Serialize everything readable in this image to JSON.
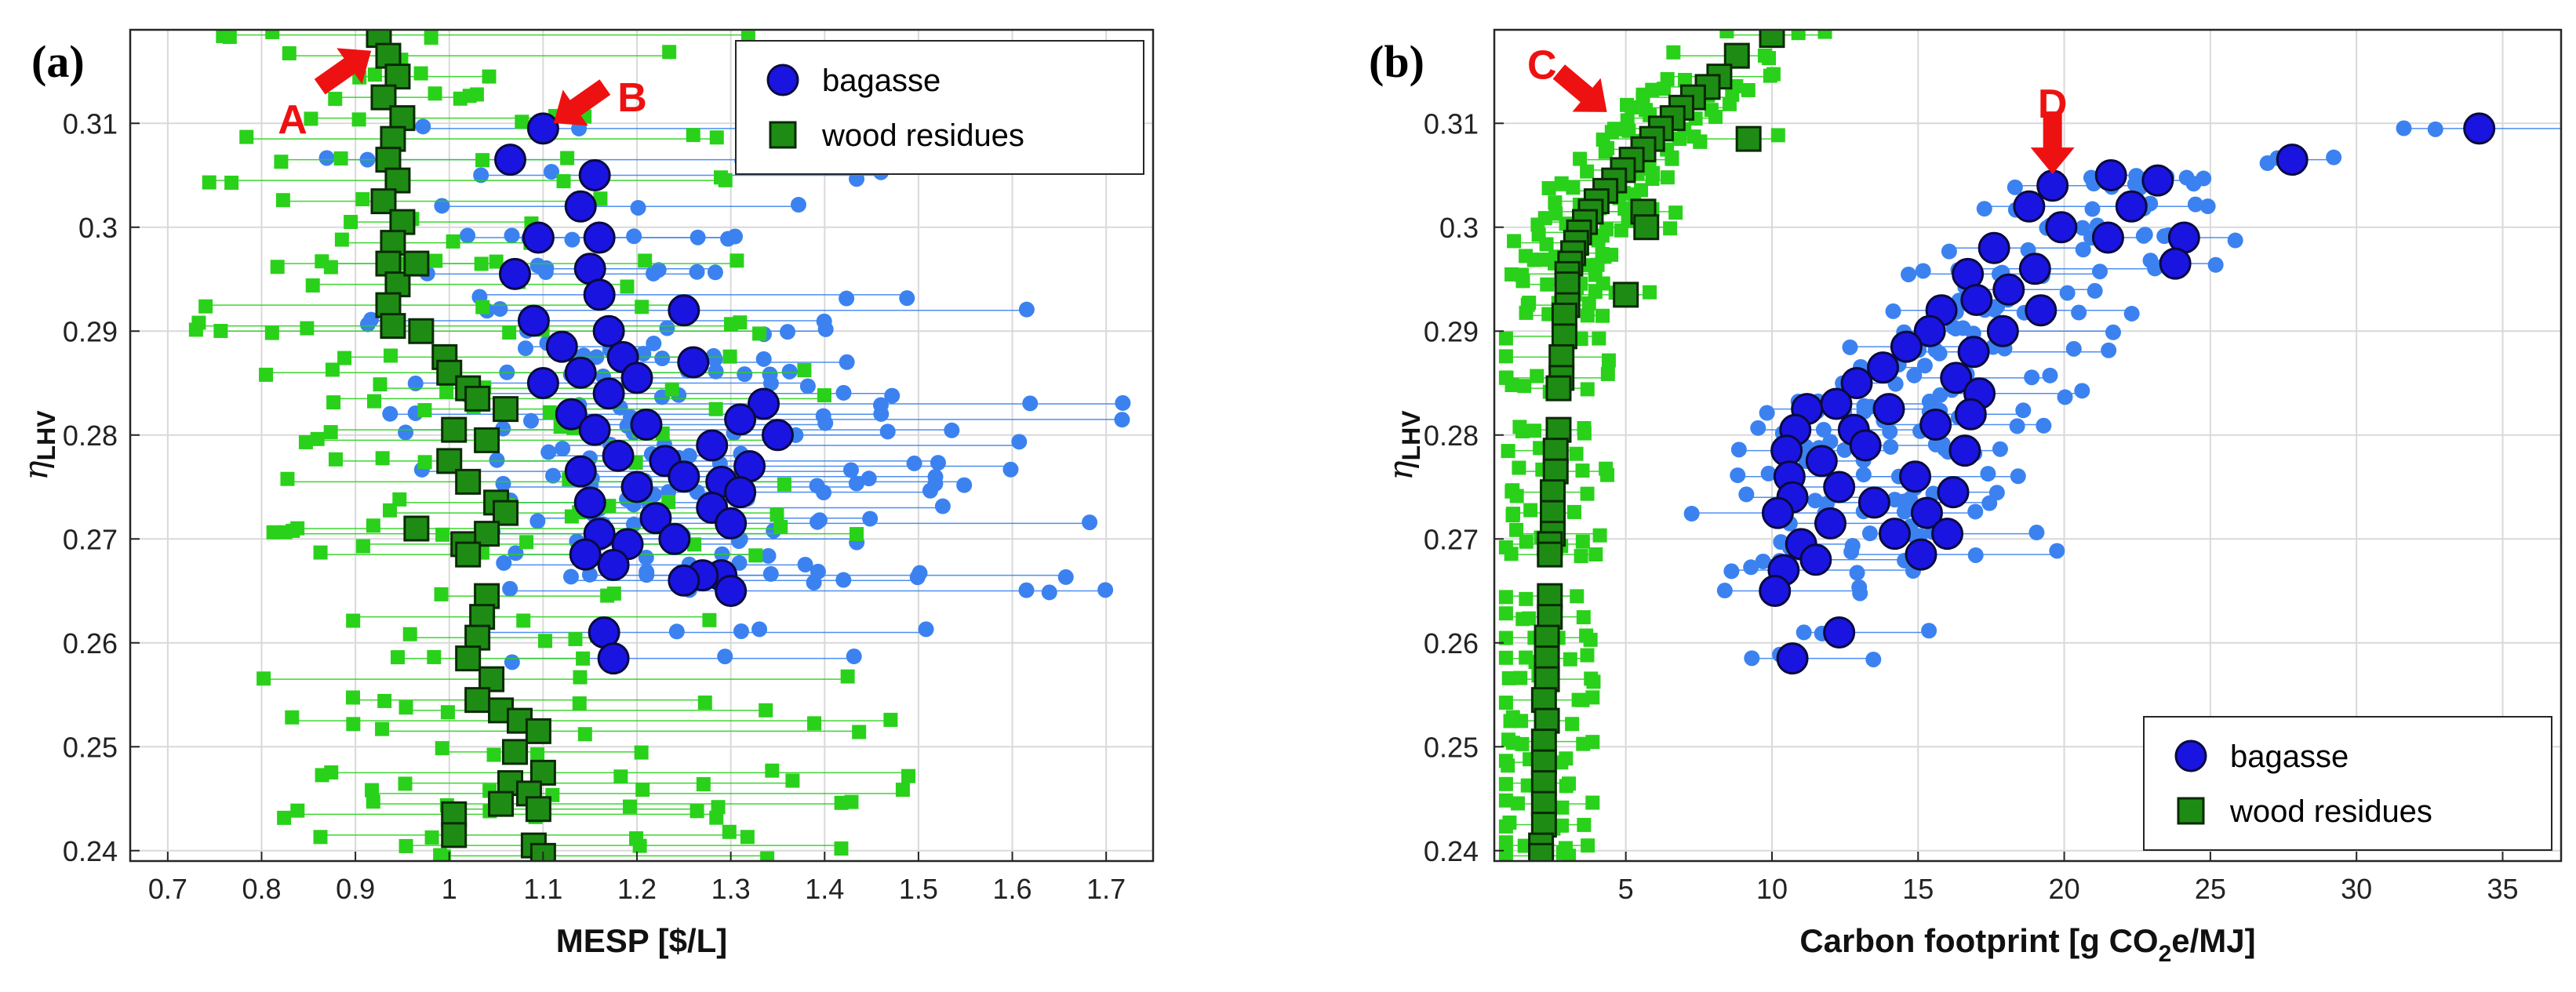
{
  "chart_data": [
    {
      "type": "scatter",
      "panel_label": "(a)",
      "xlabel": "MESP [$/L]",
      "ylabel_main": "η",
      "ylabel_sub": "LHV",
      "xlim": [
        0.66,
        1.75
      ],
      "ylim": [
        0.239,
        0.319
      ],
      "grid": true,
      "legend_position": "top-right",
      "xticks": [
        0.7,
        0.8,
        0.9,
        1.0,
        1.1,
        1.2,
        1.3,
        1.4,
        1.5,
        1.6,
        1.7
      ],
      "xtick_labels": [
        "0.7",
        "0.8",
        "0.9",
        "1",
        "1.1",
        "1.2",
        "1.3",
        "1.4",
        "1.5",
        "1.6",
        "1.7"
      ],
      "yticks": [
        0.24,
        0.25,
        0.26,
        0.27,
        0.28,
        0.29,
        0.3,
        0.31
      ],
      "ytick_labels": [
        "0.24",
        "0.25",
        "0.26",
        "0.27",
        "0.28",
        "0.29",
        "0.3",
        "0.31"
      ],
      "annotations": [
        {
          "text": "A",
          "x": 0.925,
          "y": 0.3175,
          "arrow": "diag-up-right"
        },
        {
          "text": "B",
          "x": 1.103,
          "y": 0.3095,
          "arrow": "diag-down-left"
        }
      ],
      "series": [
        {
          "name": "bagasse",
          "marker": "circle",
          "color": "#1a14e0",
          "range_color": "#3b82f0",
          "points": [
            [
              1.1,
              0.3095
            ],
            [
              1.065,
              0.3065
            ],
            [
              1.155,
              0.305
            ],
            [
              1.14,
              0.302
            ],
            [
              1.16,
              0.299
            ],
            [
              1.095,
              0.299
            ],
            [
              1.15,
              0.296
            ],
            [
              1.07,
              0.2955
            ],
            [
              1.16,
              0.2935
            ],
            [
              1.25,
              0.292
            ],
            [
              1.09,
              0.291
            ],
            [
              1.17,
              0.29
            ],
            [
              1.12,
              0.2885
            ],
            [
              1.185,
              0.2875
            ],
            [
              1.26,
              0.287
            ],
            [
              1.14,
              0.286
            ],
            [
              1.2,
              0.2855
            ],
            [
              1.1,
              0.285
            ],
            [
              1.17,
              0.284
            ],
            [
              1.335,
              0.283
            ],
            [
              1.13,
              0.282
            ],
            [
              1.31,
              0.2815
            ],
            [
              1.21,
              0.281
            ],
            [
              1.155,
              0.2805
            ],
            [
              1.35,
              0.28
            ],
            [
              1.28,
              0.279
            ],
            [
              1.18,
              0.278
            ],
            [
              1.23,
              0.2775
            ],
            [
              1.32,
              0.277
            ],
            [
              1.14,
              0.2765
            ],
            [
              1.25,
              0.276
            ],
            [
              1.29,
              0.2755
            ],
            [
              1.2,
              0.275
            ],
            [
              1.31,
              0.2745
            ],
            [
              1.15,
              0.2735
            ],
            [
              1.28,
              0.273
            ],
            [
              1.22,
              0.272
            ],
            [
              1.3,
              0.2715
            ],
            [
              1.16,
              0.2705
            ],
            [
              1.24,
              0.27
            ],
            [
              1.19,
              0.2695
            ],
            [
              1.145,
              0.2685
            ],
            [
              1.175,
              0.2675
            ],
            [
              1.29,
              0.2665
            ],
            [
              1.27,
              0.2665
            ],
            [
              1.25,
              0.266
            ],
            [
              1.3,
              0.265
            ],
            [
              1.165,
              0.261
            ],
            [
              1.175,
              0.2585
            ]
          ]
        },
        {
          "name": "wood residues",
          "marker": "square",
          "color": "#1e8c14",
          "range_color": "#29d11a",
          "points": [
            [
              0.925,
              0.3185
            ],
            [
              0.935,
              0.3165
            ],
            [
              0.945,
              0.3145
            ],
            [
              0.93,
              0.3125
            ],
            [
              0.95,
              0.3105
            ],
            [
              0.94,
              0.3085
            ],
            [
              0.935,
              0.3065
            ],
            [
              0.945,
              0.3045
            ],
            [
              0.93,
              0.3025
            ],
            [
              0.95,
              0.3005
            ],
            [
              0.94,
              0.2985
            ],
            [
              0.935,
              0.2965
            ],
            [
              0.945,
              0.2945
            ],
            [
              0.935,
              0.2925
            ],
            [
              0.94,
              0.2905
            ],
            [
              0.965,
              0.2965
            ],
            [
              0.97,
              0.29
            ],
            [
              0.995,
              0.2875
            ],
            [
              1.0,
              0.286
            ],
            [
              1.02,
              0.2845
            ],
            [
              1.03,
              0.2835
            ],
            [
              1.06,
              0.2825
            ],
            [
              1.005,
              0.2805
            ],
            [
              1.04,
              0.2795
            ],
            [
              1.0,
              0.2775
            ],
            [
              1.02,
              0.2755
            ],
            [
              1.05,
              0.2735
            ],
            [
              1.06,
              0.2725
            ],
            [
              0.965,
              0.271
            ],
            [
              1.04,
              0.2705
            ],
            [
              1.015,
              0.2695
            ],
            [
              1.02,
              0.2685
            ],
            [
              1.04,
              0.2645
            ],
            [
              1.035,
              0.2625
            ],
            [
              1.03,
              0.2605
            ],
            [
              1.02,
              0.2585
            ],
            [
              1.045,
              0.2565
            ],
            [
              1.03,
              0.2545
            ],
            [
              1.055,
              0.2535
            ],
            [
              1.075,
              0.2525
            ],
            [
              1.095,
              0.2515
            ],
            [
              1.07,
              0.2495
            ],
            [
              1.1,
              0.2475
            ],
            [
              1.065,
              0.2465
            ],
            [
              1.085,
              0.2455
            ],
            [
              1.055,
              0.2445
            ],
            [
              1.005,
              0.2435
            ],
            [
              1.095,
              0.244
            ],
            [
              1.005,
              0.2415
            ],
            [
              1.09,
              0.2405
            ],
            [
              1.1,
              0.2395
            ]
          ]
        }
      ]
    },
    {
      "type": "scatter",
      "panel_label": "(b)",
      "xlabel_prefix": "Carbon footprint [g CO",
      "xlabel_sub": "2",
      "xlabel_suffix": "e/MJ]",
      "ylabel_main": "η",
      "ylabel_sub": "LHV",
      "xlim": [
        0.5,
        37.0
      ],
      "ylim": [
        0.239,
        0.319
      ],
      "grid": true,
      "legend_position": "bottom-right",
      "xticks": [
        5,
        10,
        15,
        20,
        25,
        30,
        35
      ],
      "xtick_labels": [
        "5",
        "10",
        "15",
        "20",
        "25",
        "30",
        "35"
      ],
      "yticks": [
        0.24,
        0.25,
        0.26,
        0.27,
        0.28,
        0.29,
        0.3,
        0.31
      ],
      "ytick_labels": [
        "0.24",
        "0.25",
        "0.26",
        "0.27",
        "0.28",
        "0.29",
        "0.3",
        "0.31"
      ],
      "annotations": [
        {
          "text": "C",
          "x": 4.6,
          "y": 0.3105,
          "arrow": "diag-down-right"
        },
        {
          "text": "D",
          "x": 19.6,
          "y": 0.3045,
          "arrow": "down"
        }
      ],
      "series": [
        {
          "name": "bagasse",
          "marker": "circle",
          "color": "#1a14e0",
          "range_color": "#3b82f0",
          "points": [
            [
              34.2,
              0.3095
            ],
            [
              27.8,
              0.3065
            ],
            [
              21.6,
              0.305
            ],
            [
              23.2,
              0.3045
            ],
            [
              19.6,
              0.304
            ],
            [
              18.8,
              0.302
            ],
            [
              22.3,
              0.302
            ],
            [
              19.9,
              0.3
            ],
            [
              21.5,
              0.299
            ],
            [
              24.1,
              0.299
            ],
            [
              17.6,
              0.298
            ],
            [
              19.0,
              0.296
            ],
            [
              16.7,
              0.2955
            ],
            [
              23.8,
              0.2965
            ],
            [
              18.1,
              0.294
            ],
            [
              17.0,
              0.293
            ],
            [
              15.8,
              0.292
            ],
            [
              19.2,
              0.292
            ],
            [
              15.4,
              0.29
            ],
            [
              17.9,
              0.29
            ],
            [
              14.6,
              0.2885
            ],
            [
              16.9,
              0.288
            ],
            [
              13.8,
              0.2865
            ],
            [
              16.3,
              0.2855
            ],
            [
              12.9,
              0.285
            ],
            [
              17.1,
              0.284
            ],
            [
              12.2,
              0.283
            ],
            [
              11.2,
              0.2825
            ],
            [
              14.0,
              0.2825
            ],
            [
              16.8,
              0.282
            ],
            [
              10.8,
              0.2805
            ],
            [
              12.8,
              0.2805
            ],
            [
              15.6,
              0.281
            ],
            [
              10.5,
              0.2785
            ],
            [
              13.2,
              0.279
            ],
            [
              16.6,
              0.2785
            ],
            [
              11.7,
              0.2775
            ],
            [
              10.6,
              0.276
            ],
            [
              14.9,
              0.276
            ],
            [
              12.3,
              0.275
            ],
            [
              16.2,
              0.2745
            ],
            [
              10.7,
              0.274
            ],
            [
              13.5,
              0.2735
            ],
            [
              15.3,
              0.2725
            ],
            [
              10.2,
              0.2725
            ],
            [
              12.0,
              0.2715
            ],
            [
              14.2,
              0.2705
            ],
            [
              16.0,
              0.2705
            ],
            [
              11.0,
              0.2695
            ],
            [
              15.1,
              0.2685
            ],
            [
              11.5,
              0.268
            ],
            [
              10.4,
              0.267
            ],
            [
              10.1,
              0.265
            ],
            [
              12.3,
              0.261
            ],
            [
              10.7,
              0.2585
            ]
          ]
        },
        {
          "name": "wood residues",
          "marker": "square",
          "color": "#1e8c14",
          "range_color": "#29d11a",
          "points": [
            [
              10.0,
              0.3185
            ],
            [
              8.8,
              0.3165
            ],
            [
              8.2,
              0.3145
            ],
            [
              7.8,
              0.3135
            ],
            [
              7.3,
              0.3125
            ],
            [
              6.9,
              0.3115
            ],
            [
              6.6,
              0.3105
            ],
            [
              6.2,
              0.3095
            ],
            [
              9.2,
              0.3085
            ],
            [
              5.9,
              0.3085
            ],
            [
              5.6,
              0.3075
            ],
            [
              5.2,
              0.3065
            ],
            [
              4.9,
              0.3055
            ],
            [
              4.6,
              0.3045
            ],
            [
              4.3,
              0.3035
            ],
            [
              4.0,
              0.3025
            ],
            [
              3.8,
              0.3015
            ],
            [
              5.6,
              0.3015
            ],
            [
              3.6,
              0.3005
            ],
            [
              5.7,
              0.3
            ],
            [
              3.4,
              0.2995
            ],
            [
              3.3,
              0.2985
            ],
            [
              3.2,
              0.2975
            ],
            [
              3.1,
              0.2965
            ],
            [
              3.0,
              0.2955
            ],
            [
              3.0,
              0.2945
            ],
            [
              5.0,
              0.2935
            ],
            [
              3.0,
              0.2925
            ],
            [
              2.9,
              0.2915
            ],
            [
              2.9,
              0.2895
            ],
            [
              2.8,
              0.2875
            ],
            [
              2.8,
              0.2855
            ],
            [
              2.7,
              0.2845
            ],
            [
              2.7,
              0.2805
            ],
            [
              2.6,
              0.2785
            ],
            [
              2.6,
              0.2765
            ],
            [
              2.5,
              0.2745
            ],
            [
              2.5,
              0.2725
            ],
            [
              2.5,
              0.2705
            ],
            [
              2.4,
              0.2695
            ],
            [
              2.4,
              0.2685
            ],
            [
              2.4,
              0.2645
            ],
            [
              2.4,
              0.2625
            ],
            [
              2.3,
              0.2605
            ],
            [
              2.3,
              0.2585
            ],
            [
              2.3,
              0.2565
            ],
            [
              2.2,
              0.2545
            ],
            [
              2.3,
              0.2525
            ],
            [
              2.2,
              0.2505
            ],
            [
              2.2,
              0.2485
            ],
            [
              2.2,
              0.2465
            ],
            [
              2.2,
              0.2445
            ],
            [
              2.2,
              0.2425
            ],
            [
              2.1,
              0.2405
            ],
            [
              2.1,
              0.2395
            ]
          ]
        }
      ]
    }
  ]
}
